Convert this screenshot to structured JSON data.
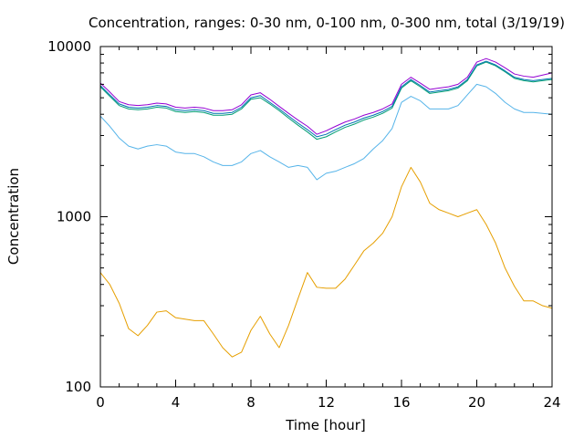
{
  "chart_data": {
    "type": "line",
    "title": "Concentration, ranges: 0-30 nm, 0-100 nm, 0-300 nm, total (3/19/19)",
    "xlabel": "Time [hour]",
    "ylabel": "Concentration",
    "xlim": [
      0,
      24
    ],
    "ylim": [
      100,
      10000
    ],
    "yscale": "log",
    "xticks": [
      "0",
      "4",
      "8",
      "12",
      "16",
      "20",
      "24"
    ],
    "yticks": [
      "100",
      "1000",
      "10000"
    ],
    "grid": false,
    "legend": "none",
    "series": [
      {
        "color": "#e69f00",
        "x": [
          0,
          0.5,
          1,
          1.5,
          2,
          2.5,
          3,
          3.5,
          4,
          4.5,
          5,
          5.5,
          6,
          6.5,
          7,
          7.5,
          8,
          8.5,
          9,
          9.5,
          10,
          10.5,
          11,
          11.5,
          12,
          12.5,
          13,
          13.5,
          14,
          14.5,
          15,
          15.5,
          16,
          16.5,
          17,
          17.5,
          18,
          18.5,
          19,
          19.5,
          20,
          20.5,
          21,
          21.5,
          22,
          22.5,
          23,
          23.5,
          24
        ],
        "y": [
          470,
          400,
          310,
          220,
          200,
          230,
          275,
          280,
          255,
          250,
          245,
          245,
          205,
          170,
          150,
          160,
          215,
          260,
          205,
          170,
          230,
          330,
          470,
          385,
          380,
          380,
          430,
          520,
          630,
          700,
          800,
          1000,
          1500,
          1950,
          1600,
          1200,
          1100,
          1050,
          1000,
          1050,
          1100,
          900,
          700,
          500,
          390,
          320,
          320,
          300,
          290
        ]
      },
      {
        "color": "#56b4e9",
        "x": [
          0,
          0.5,
          1,
          1.5,
          2,
          2.5,
          3,
          3.5,
          4,
          4.5,
          5,
          5.5,
          6,
          6.5,
          7,
          7.5,
          8,
          8.5,
          9,
          9.5,
          10,
          10.5,
          11,
          11.5,
          12,
          12.5,
          13,
          13.5,
          14,
          14.5,
          15,
          15.5,
          16,
          16.5,
          17,
          17.5,
          18,
          18.5,
          19,
          19.5,
          20,
          20.5,
          21,
          21.5,
          22,
          22.5,
          23,
          23.5,
          24
        ],
        "y": [
          3900,
          3400,
          2900,
          2600,
          2500,
          2600,
          2650,
          2600,
          2400,
          2350,
          2350,
          2250,
          2100,
          2000,
          2000,
          2100,
          2350,
          2450,
          2250,
          2100,
          1950,
          2000,
          1950,
          1650,
          1800,
          1850,
          1950,
          2050,
          2200,
          2500,
          2800,
          3300,
          4700,
          5100,
          4800,
          4300,
          4300,
          4300,
          4500,
          5200,
          6000,
          5800,
          5300,
          4700,
          4300,
          4100,
          4100,
          4050,
          4000
        ]
      },
      {
        "color": "#009e73",
        "x": [
          0,
          0.5,
          1,
          1.5,
          2,
          2.5,
          3,
          3.5,
          4,
          4.5,
          5,
          5.5,
          6,
          6.5,
          7,
          7.5,
          8,
          8.5,
          9,
          9.5,
          10,
          10.5,
          11,
          11.5,
          12,
          12.5,
          13,
          13.5,
          14,
          14.5,
          15,
          15.5,
          16,
          16.5,
          17,
          17.5,
          18,
          18.5,
          19,
          19.5,
          20,
          20.5,
          21,
          21.5,
          22,
          22.5,
          23,
          23.5,
          24
        ],
        "y": [
          5800,
          5100,
          4500,
          4300,
          4250,
          4300,
          4400,
          4350,
          4150,
          4100,
          4150,
          4100,
          3950,
          3950,
          4000,
          4300,
          4900,
          5000,
          4600,
          4200,
          3800,
          3450,
          3150,
          2850,
          2950,
          3150,
          3350,
          3500,
          3700,
          3850,
          4050,
          4350,
          5700,
          6300,
          5800,
          5300,
          5400,
          5500,
          5700,
          6300,
          7700,
          8100,
          7700,
          7100,
          6500,
          6300,
          6200,
          6300,
          6400
        ]
      },
      {
        "color": "#0072b2",
        "x": [
          0,
          0.5,
          1,
          1.5,
          2,
          2.5,
          3,
          3.5,
          4,
          4.5,
          5,
          5.5,
          6,
          6.5,
          7,
          7.5,
          8,
          8.5,
          9,
          9.5,
          10,
          10.5,
          11,
          11.5,
          12,
          12.5,
          13,
          13.5,
          14,
          14.5,
          15,
          15.5,
          16,
          16.5,
          17,
          17.5,
          18,
          18.5,
          19,
          19.5,
          20,
          20.5,
          21,
          21.5,
          22,
          22.5,
          23,
          23.5,
          24
        ],
        "y": [
          5900,
          5200,
          4600,
          4400,
          4350,
          4400,
          4500,
          4450,
          4250,
          4200,
          4250,
          4200,
          4050,
          4050,
          4100,
          4400,
          5000,
          5150,
          4700,
          4300,
          3900,
          3550,
          3250,
          2950,
          3050,
          3250,
          3450,
          3600,
          3800,
          3950,
          4150,
          4450,
          5800,
          6400,
          5900,
          5400,
          5500,
          5600,
          5800,
          6400,
          7800,
          8200,
          7800,
          7200,
          6600,
          6400,
          6300,
          6400,
          6500
        ]
      },
      {
        "color": "#9400d3",
        "x": [
          0,
          0.5,
          1,
          1.5,
          2,
          2.5,
          3,
          3.5,
          4,
          4.5,
          5,
          5.5,
          6,
          6.5,
          7,
          7.5,
          8,
          8.5,
          9,
          9.5,
          10,
          10.5,
          11,
          11.5,
          12,
          12.5,
          13,
          13.5,
          14,
          14.5,
          15,
          15.5,
          16,
          16.5,
          17,
          17.5,
          18,
          18.5,
          19,
          19.5,
          20,
          20.5,
          21,
          21.5,
          22,
          22.5,
          23,
          23.5,
          24
        ],
        "y": [
          6100,
          5400,
          4750,
          4550,
          4500,
          4550,
          4650,
          4600,
          4400,
          4350,
          4400,
          4350,
          4200,
          4200,
          4250,
          4550,
          5200,
          5350,
          4900,
          4450,
          4050,
          3700,
          3400,
          3050,
          3200,
          3400,
          3600,
          3750,
          3950,
          4100,
          4300,
          4600,
          6000,
          6600,
          6100,
          5600,
          5700,
          5800,
          6000,
          6600,
          8100,
          8500,
          8100,
          7500,
          6900,
          6700,
          6600,
          6800,
          7000
        ]
      }
    ]
  }
}
